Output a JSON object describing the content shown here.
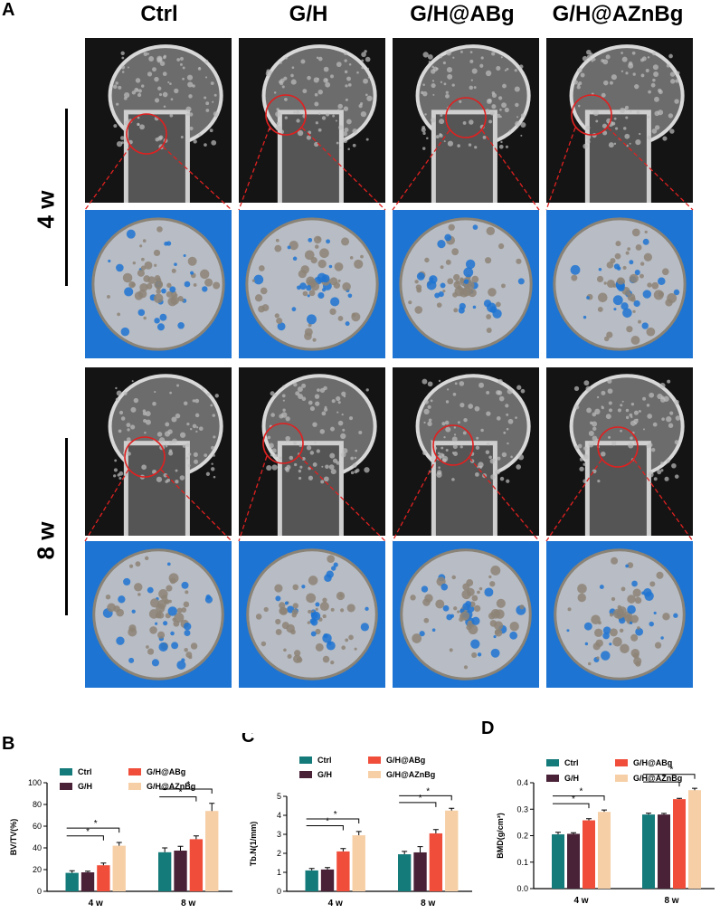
{
  "panel_a": {
    "letter": "A",
    "columns": [
      "Ctrl",
      "G/H",
      "G/H@ABg",
      "G/H@AZnBg"
    ],
    "rows": [
      "4 w",
      "8 w"
    ]
  },
  "colors": {
    "Ctrl": "#157a7a",
    "G/H": "#4a2238",
    "G/H@ABg": "#f04e3a",
    "G/H@AZnBg": "#f7cfa6",
    "render_bg": "#1e74d2",
    "zoom_line": "#e02020"
  },
  "chart_data": [
    {
      "letter": "B",
      "type": "bar",
      "categories": [
        "4 w",
        "8 w"
      ],
      "series": [
        {
          "name": "Ctrl",
          "values": [
            17,
            36
          ],
          "errors": [
            2,
            4
          ]
        },
        {
          "name": "G/H",
          "values": [
            17.5,
            37.5
          ],
          "errors": [
            1,
            4
          ]
        },
        {
          "name": "G/H@ABg",
          "values": [
            24,
            48
          ],
          "errors": [
            2,
            3
          ]
        },
        {
          "name": "G/H@AZnBg",
          "values": [
            42,
            74
          ],
          "errors": [
            3,
            7
          ]
        }
      ],
      "ylabel": "BV/TV(%)",
      "ylim": [
        0,
        100
      ],
      "yticks": [
        "0",
        "20",
        "40",
        "60",
        "80",
        "100"
      ],
      "significance": "*"
    },
    {
      "letter": "C",
      "type": "bar",
      "categories": [
        "4 w",
        "8 w"
      ],
      "series": [
        {
          "name": "Ctrl",
          "values": [
            1.1,
            1.95
          ],
          "errors": [
            0.1,
            0.15
          ]
        },
        {
          "name": "G/H",
          "values": [
            1.15,
            2.05
          ],
          "errors": [
            0.1,
            0.3
          ]
        },
        {
          "name": "G/H@ABg",
          "values": [
            2.1,
            3.05
          ],
          "errors": [
            0.15,
            0.2
          ]
        },
        {
          "name": "G/H@AZnBg",
          "values": [
            2.95,
            4.25
          ],
          "errors": [
            0.2,
            0.12
          ]
        }
      ],
      "ylabel": "Tb.N(1/mm)",
      "ylim": [
        0,
        5
      ],
      "yticks": [
        "0",
        "1",
        "2",
        "3",
        "4",
        "5"
      ],
      "significance": "*"
    },
    {
      "letter": "D",
      "type": "bar",
      "categories": [
        "4 w",
        "8 w"
      ],
      "series": [
        {
          "name": "Ctrl",
          "values": [
            0.205,
            0.28
          ],
          "errors": [
            0.008,
            0.005
          ]
        },
        {
          "name": "G/H",
          "values": [
            0.207,
            0.28
          ],
          "errors": [
            0.004,
            0.004
          ]
        },
        {
          "name": "G/H@ABg",
          "values": [
            0.258,
            0.338
          ],
          "errors": [
            0.006,
            0.003
          ]
        },
        {
          "name": "G/H@AZnBg",
          "values": [
            0.29,
            0.372
          ],
          "errors": [
            0.007,
            0.007
          ]
        }
      ],
      "ylabel": "BMD(g/cm³)",
      "ylim": [
        0,
        0.4
      ],
      "yticks": [
        "0.0",
        "0.1",
        "0.2",
        "0.3",
        "0.4"
      ],
      "significance": "*"
    }
  ]
}
